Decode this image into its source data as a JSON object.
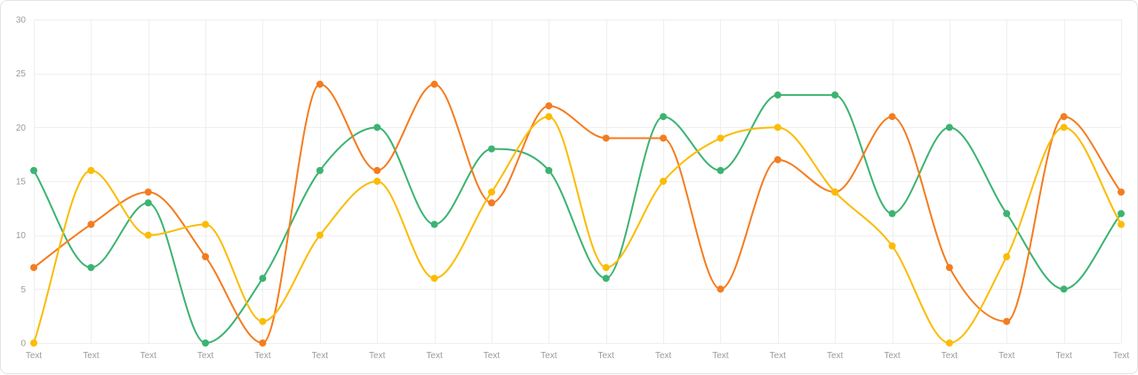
{
  "chart_data": {
    "type": "line",
    "smooth": true,
    "categories": [
      "Text",
      "Text",
      "Text",
      "Text",
      "Text",
      "Text",
      "Text",
      "Text",
      "Text",
      "Text",
      "Text",
      "Text",
      "Text",
      "Text",
      "Text",
      "Text",
      "Text",
      "Text",
      "Text",
      "Text"
    ],
    "y_ticks": [
      0,
      5,
      10,
      15,
      20,
      25,
      30
    ],
    "ylim": [
      0,
      30
    ],
    "grid": true,
    "legend": "none",
    "series": [
      {
        "color": "#3cb371",
        "values": [
          16,
          7,
          13,
          0,
          6,
          16,
          20,
          11,
          18,
          16,
          6,
          21,
          16,
          23,
          23,
          12,
          20,
          12,
          5,
          12
        ]
      },
      {
        "color": "#f47c20",
        "values": [
          7,
          11,
          14,
          8,
          0,
          24,
          16,
          24,
          13,
          22,
          19,
          19,
          5,
          17,
          14,
          21,
          7,
          2,
          21,
          14
        ]
      },
      {
        "color": "#fbbc05",
        "values": [
          0,
          16,
          10,
          11,
          2,
          10,
          15,
          6,
          14,
          21,
          7,
          15,
          19,
          20,
          14,
          9,
          0,
          8,
          20,
          11
        ]
      }
    ]
  }
}
